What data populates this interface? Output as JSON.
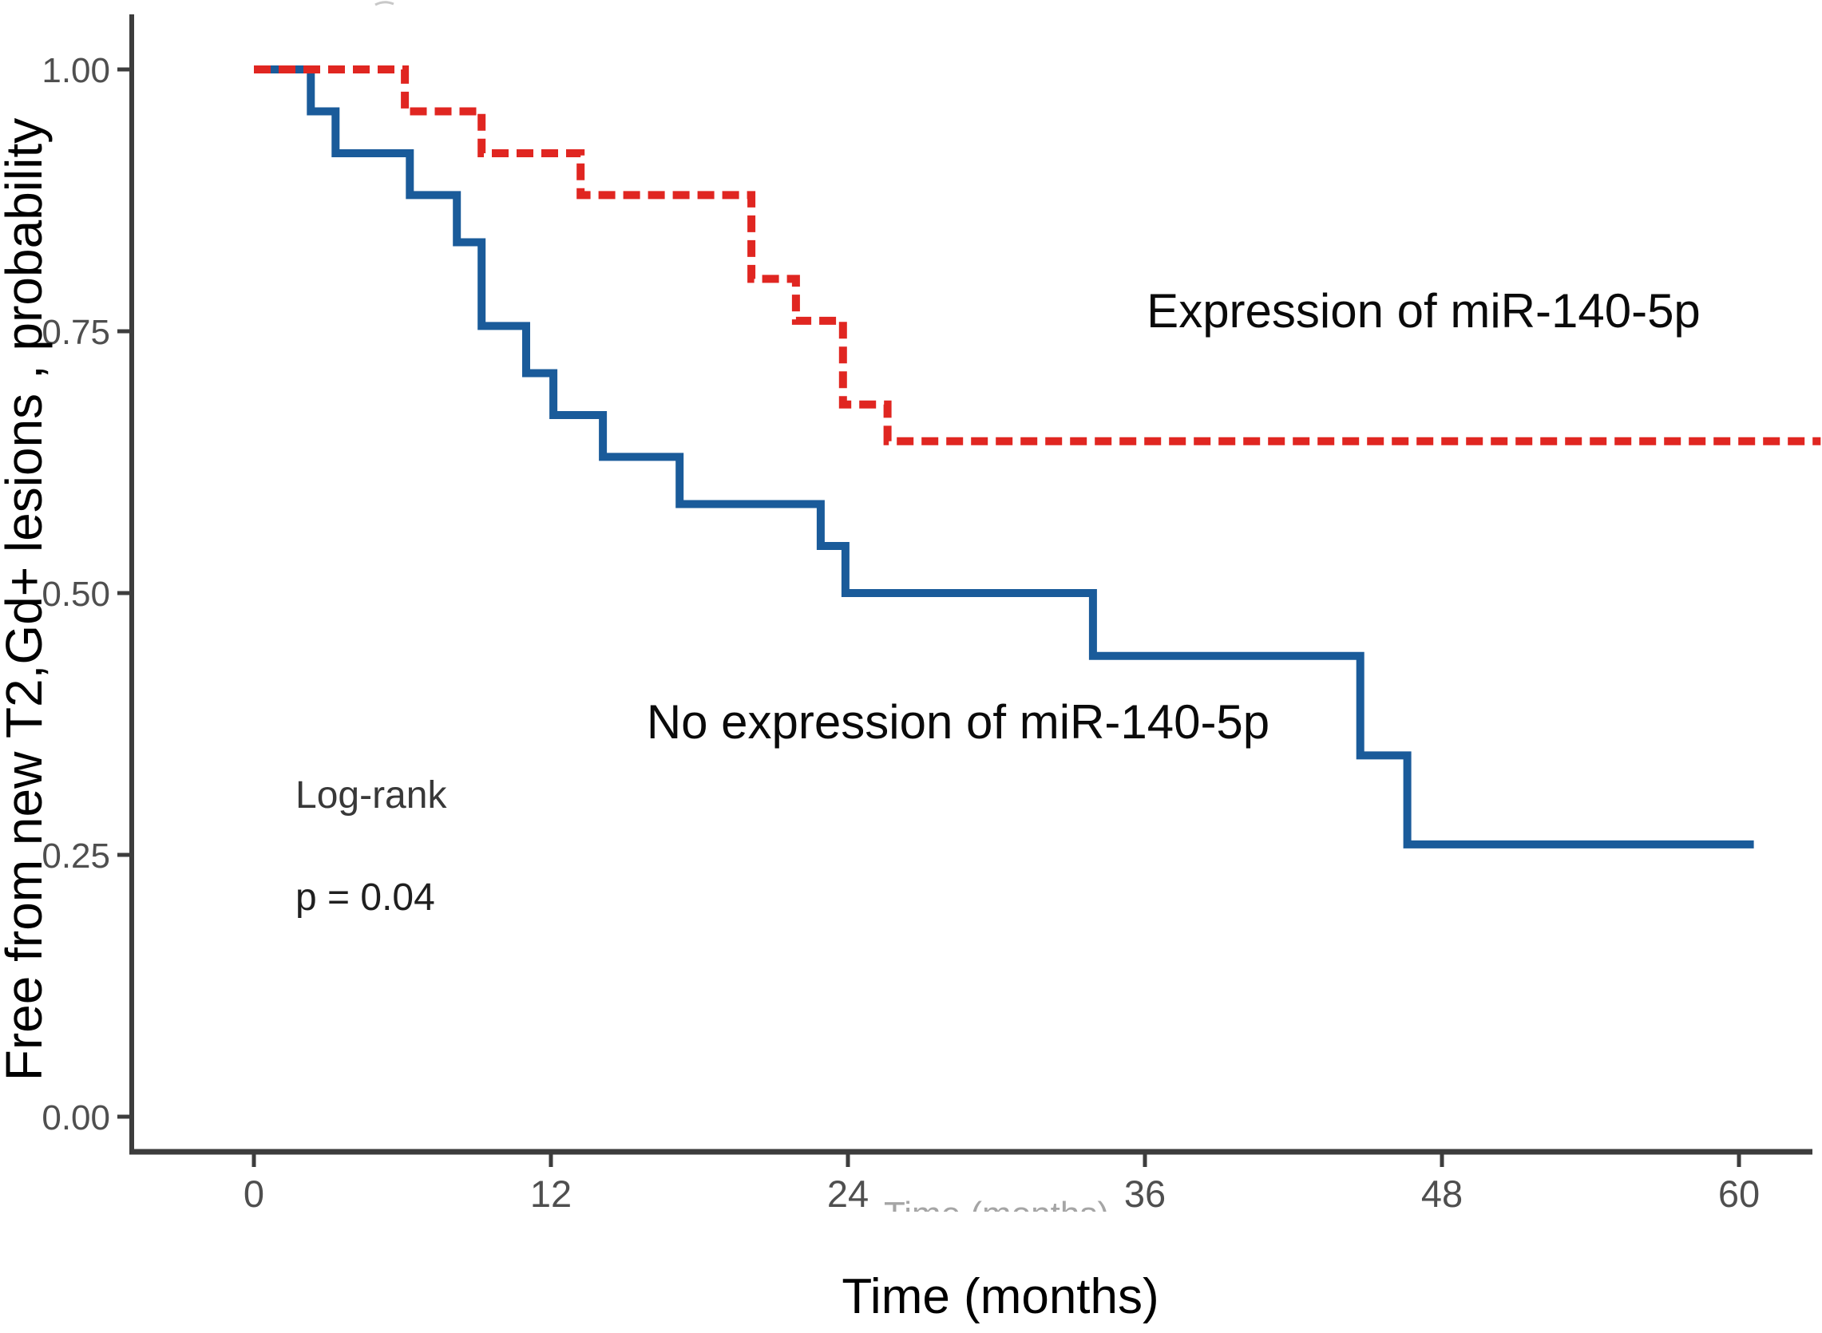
{
  "figure": {
    "background": "#ffffff",
    "labels": {
      "expression_group": "Expression of miR-140-5p",
      "no_expression_group": "No expression of miR-140-5p"
    },
    "annotations": {
      "logrank": "Log-rank",
      "pvalue": "p = 0.04"
    },
    "colors": {
      "expression_curve": "#e02621",
      "no_expression_curve": "#1a5b9a",
      "axis": "#3d3d3d",
      "tick_text": "#4f4f4f",
      "faint_axis_title": "#8f8f8f"
    }
  },
  "chart_data": {
    "type": "line",
    "subtype": "kaplan-meier-step",
    "title": "",
    "xlabel": "Time (months)",
    "ylabel": "Free from new T2,Gd+ lesions , probability",
    "xlim": [
      -5,
      63.4
    ],
    "ylim": [
      -0.034,
      1.047
    ],
    "grid": "off",
    "legend_position": "labels-annotated-on-plot",
    "x_ticks": [
      0,
      12,
      24,
      36,
      48,
      60
    ],
    "x_tick_labels": [
      "0",
      "12",
      "24",
      "36",
      "48",
      "60"
    ],
    "y_ticks": [
      0.0,
      0.25,
      0.5,
      0.75,
      1.0
    ],
    "y_tick_labels": [
      "0.00",
      "0.25",
      "0.50",
      "0.75",
      "1.00"
    ],
    "series": [
      {
        "name": "Expression of miR-140-5p",
        "line_style": "dashed",
        "color": "#e02621",
        "start_time": 0,
        "start_prob": 1.0,
        "drops": [
          [
            6.1,
            0.96
          ],
          [
            9.2,
            0.92
          ],
          [
            13.2,
            0.88
          ],
          [
            20.1,
            0.8
          ],
          [
            21.9,
            0.76
          ],
          [
            23.8,
            0.68
          ],
          [
            25.6,
            0.645
          ]
        ],
        "end_time": 63.3,
        "final_prob": 0.645
      },
      {
        "name": "No expression of miR-140-5p",
        "line_style": "solid",
        "color": "#1a5b9a",
        "start_time": 0,
        "start_prob": 1.0,
        "drops": [
          [
            2.3,
            0.96
          ],
          [
            3.3,
            0.92
          ],
          [
            6.3,
            0.88
          ],
          [
            8.2,
            0.835
          ],
          [
            9.2,
            0.755
          ],
          [
            11.0,
            0.71
          ],
          [
            12.1,
            0.67
          ],
          [
            14.1,
            0.63
          ],
          [
            17.2,
            0.585
          ],
          [
            22.9,
            0.545
          ],
          [
            23.9,
            0.5
          ],
          [
            33.9,
            0.44
          ],
          [
            44.7,
            0.345
          ],
          [
            46.6,
            0.26
          ]
        ],
        "end_time": 60.6,
        "final_prob": 0.26
      }
    ],
    "annotations": [
      "Log-rank",
      "p = 0.04"
    ]
  }
}
